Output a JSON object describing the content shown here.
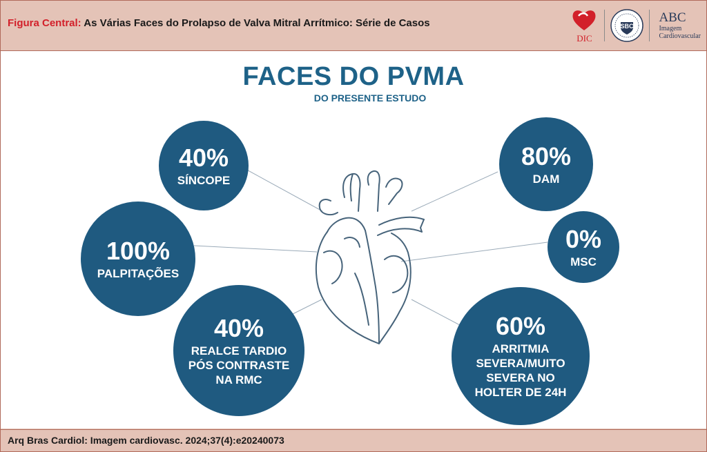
{
  "header": {
    "prefix": "Figura Central:",
    "title": " As Várias Faces do Prolapso de Valva Mitral Arrítmico: Série de Casos",
    "logos": {
      "dic_text": "DIC",
      "sbc_text": "SBC",
      "abc_main": "ABC",
      "abc_sub1": "Imagem",
      "abc_sub2": "Cardiovascular"
    }
  },
  "infographic": {
    "title": "FACES DO PVMA",
    "subtitle": "DO PRESENTE ESTUDO",
    "items": [
      {
        "percent": "40%",
        "label": "SÍNCOPE"
      },
      {
        "percent": "100%",
        "label": "PALPITAÇÕES"
      },
      {
        "percent": "40%",
        "label_lines": [
          "REALCE TARDIO",
          "PÓS CONTRASTE",
          "NA RMC"
        ]
      },
      {
        "percent": "80%",
        "label": "DAM"
      },
      {
        "percent": "0%",
        "label": "MSC"
      },
      {
        "percent": "60%",
        "label_lines": [
          "ARRITMIA",
          "SEVERA/MUITO",
          "SEVERA NO",
          "HOLTER DE 24H"
        ]
      }
    ],
    "colors": {
      "circle": "#1f5a80",
      "title": "#1e6288",
      "frame": "#e4c3b7",
      "accent": "#d2202a"
    },
    "center_icon": "heart-outline-icon"
  },
  "footer": {
    "citation": "Arq Bras Cardiol: Imagem cardiovasc. 2024;37(4):e20240073"
  }
}
